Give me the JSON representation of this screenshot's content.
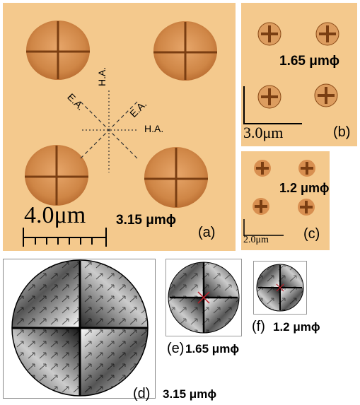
{
  "panel_a": {
    "label": "(a)",
    "size": "3.15 μmϕ",
    "scale": "4.0μm",
    "axes": {
      "hard_top": "H.A.",
      "easy_left": "E.A.",
      "easy_right": "E.A.",
      "hard_right": "H.A."
    }
  },
  "panel_b": {
    "label": "(b)",
    "size": "1.65 μmϕ",
    "scale": "3.0μm"
  },
  "panel_c": {
    "label": "(c)",
    "size": "1.2 μmϕ",
    "scale": "2.0μm"
  },
  "panel_d": {
    "label": "(d)",
    "size": "3.15 μmϕ"
  },
  "panel_e": {
    "label": "(e)",
    "size": "1.65 μmϕ"
  },
  "panel_f": {
    "label": "(f)",
    "size": "1.2 μmϕ"
  },
  "colors": {
    "mfm_background": "#f4c98d",
    "dot": "#c8793a",
    "domain_wall": "#7a3e12"
  }
}
